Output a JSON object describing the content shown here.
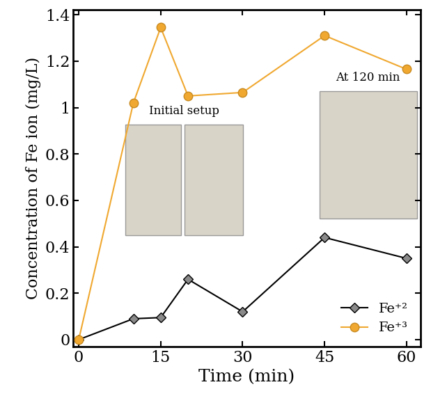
{
  "chart_data": {
    "type": "line",
    "x_label": "Time (min)",
    "y_label": "Concentration of Fe ion (mg/L)",
    "x": [
      0,
      10,
      15,
      20,
      30,
      45,
      60
    ],
    "series": [
      {
        "name": "Fe⁺²",
        "color": "#000000",
        "marker": "diamond",
        "line_style": "solid",
        "values": [
          0,
          0.09,
          0.095,
          0.26,
          0.12,
          0.44,
          0.35
        ]
      },
      {
        "name": "Fe⁺³",
        "color": "#f0a830",
        "marker": "circle",
        "line_style": "solid",
        "values": [
          0,
          1.02,
          1.345,
          1.05,
          1.065,
          1.31,
          1.165
        ]
      }
    ],
    "xlim": [
      -1,
      62.5
    ],
    "xticks": [
      0,
      15,
      30,
      45,
      60
    ],
    "ylim": [
      -0.03,
      1.42
    ],
    "yticks": [
      0,
      0.2,
      0.4,
      0.6,
      0.8,
      1,
      1.2,
      1.4
    ],
    "legend": "lower right",
    "grid": false,
    "annotations": [
      "Initial setup",
      "At 120 min"
    ]
  }
}
